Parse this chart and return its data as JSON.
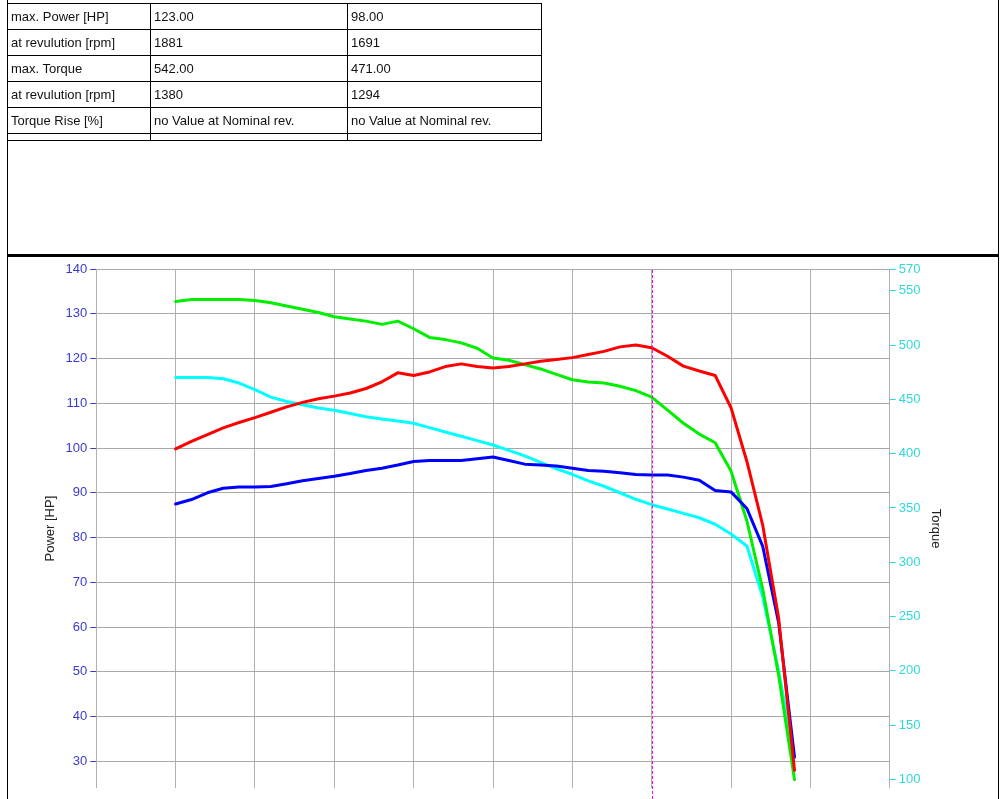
{
  "chart_data": {
    "type": "line",
    "ylabel": "Power [HP]",
    "y2label": "Torque",
    "categories": [
      null,
      null,
      null,
      null,
      null,
      null,
      null,
      null,
      null,
      null,
      null,
      null,
      null,
      null,
      null,
      null,
      null,
      null,
      null,
      null,
      null,
      null,
      null,
      null,
      null,
      null,
      null,
      null,
      null,
      null,
      null,
      null,
      null,
      null,
      null,
      null,
      null,
      null,
      null,
      null,
      null,
      null,
      null,
      null,
      null,
      null,
      null,
      null,
      null,
      null,
      null
    ],
    "series": [
      {
        "color": "#ff0000",
        "values": [
          null,
          null,
          null,
          null,
          null,
          99.8,
          101.5,
          103,
          104.5,
          105.7,
          106.8,
          108,
          109.2,
          110.2,
          111,
          111.6,
          112.3,
          113.3,
          114.8,
          116.8,
          116.2,
          117,
          118.2,
          118.8,
          118.2,
          117.9,
          118.2,
          118.8,
          119.4,
          119.8,
          120.2,
          120.9,
          121.6,
          122.6,
          123,
          122.4,
          120.5,
          118.3,
          117.2,
          116.2,
          109,
          97,
          82.7,
          62,
          28,
          null,
          null,
          null,
          null,
          null,
          null
        ]
      },
      {
        "color": "#0000ff",
        "values": [
          null,
          null,
          null,
          null,
          null,
          87.5,
          88.5,
          90,
          91,
          91.3,
          91.3,
          91.4,
          92,
          92.7,
          93.2,
          93.7,
          94.3,
          95,
          95.5,
          96.2,
          97,
          97.2,
          97.2,
          97.2,
          97.6,
          98,
          97.2,
          96.4,
          96.2,
          96,
          95.5,
          95,
          94.8,
          94.5,
          94.1,
          94,
          94,
          93.5,
          92.8,
          90.5,
          90.2,
          86.5,
          78,
          61,
          31,
          null,
          null,
          null,
          null,
          null,
          null
        ]
      },
      {
        "color": "#00ee00",
        "axis": "y2",
        "values": [
          null,
          null,
          null,
          null,
          null,
          540,
          542,
          542,
          542,
          542,
          541,
          539,
          536,
          533,
          530,
          526,
          524,
          522,
          519,
          522,
          515,
          507,
          505,
          502,
          497,
          488,
          486,
          482,
          478,
          473,
          468,
          466,
          465,
          462,
          458,
          452,
          440,
          428,
          418,
          410,
          384,
          338,
          275,
          196,
          100,
          null,
          null,
          null,
          null,
          null,
          null
        ]
      },
      {
        "color": "#00ffff",
        "axis": "y2",
        "values": [
          null,
          null,
          null,
          null,
          null,
          470,
          470,
          470,
          469,
          465,
          459,
          452,
          448,
          445,
          442,
          440,
          437,
          434,
          432,
          430,
          428,
          424,
          420,
          416,
          412,
          408,
          403,
          398,
          392,
          386,
          381,
          375,
          370,
          364,
          358,
          353,
          349,
          345,
          341,
          335,
          326,
          315,
          268,
          200,
          120,
          null,
          null,
          null,
          null,
          null,
          null
        ]
      }
    ],
    "ylim": [
      24,
      140
    ],
    "yticks": [
      30,
      40,
      50,
      60,
      70,
      80,
      90,
      100,
      110,
      120,
      130,
      140
    ],
    "y2lim": [
      92,
      570
    ],
    "y2ticks": [
      100,
      150,
      200,
      250,
      300,
      350,
      400,
      450,
      500,
      550,
      570
    ],
    "grid": true,
    "legend": false,
    "tick_labels": "y",
    "annotations": [
      "max. Power [HP]",
      "123.00",
      "98.00",
      "at revulution [rpm]",
      "1881",
      "1691",
      "max. Torque",
      "542.00",
      "471.00",
      "at revulution [rpm]",
      "1380",
      "1294",
      "Torque Rise [%]",
      "no Value at Nominal rev.",
      "no Value at Nominal rev."
    ]
  }
}
